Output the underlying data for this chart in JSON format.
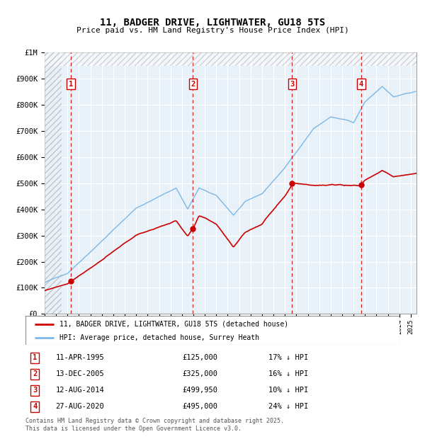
{
  "title1": "11, BADGER DRIVE, LIGHTWATER, GU18 5TS",
  "title2": "Price paid vs. HM Land Registry's House Price Index (HPI)",
  "sales": [
    {
      "num": 1,
      "date_num": 1995.29,
      "price": 125000,
      "label": "11-APR-1995",
      "pct": "17% ↓ HPI"
    },
    {
      "num": 2,
      "date_num": 2005.96,
      "price": 325000,
      "label": "13-DEC-2005",
      "pct": "16% ↓ HPI"
    },
    {
      "num": 3,
      "date_num": 2014.62,
      "price": 499950,
      "label": "12-AUG-2014",
      "pct": "10% ↓ HPI"
    },
    {
      "num": 4,
      "date_num": 2020.66,
      "price": 495000,
      "label": "27-AUG-2020",
      "pct": "24% ↓ HPI"
    }
  ],
  "hpi_color": "#7BB8E8",
  "price_color": "#CC0000",
  "marker_box_color": "#CC0000",
  "grid_color": "#C8D8E8",
  "background_color": "#E8F0F8",
  "hatch_color": "#BBBBBB",
  "ylim": [
    0,
    1000000
  ],
  "yticks": [
    0,
    100000,
    200000,
    300000,
    400000,
    500000,
    600000,
    700000,
    800000,
    900000,
    1000000
  ],
  "ytick_labels": [
    "£0",
    "£100K",
    "£200K",
    "£300K",
    "£400K",
    "£500K",
    "£600K",
    "£700K",
    "£800K",
    "£900K",
    "£1M"
  ],
  "xstart": 1993.0,
  "xend": 2025.5,
  "footer": "Contains HM Land Registry data © Crown copyright and database right 2025.\nThis data is licensed under the Open Government Licence v3.0."
}
